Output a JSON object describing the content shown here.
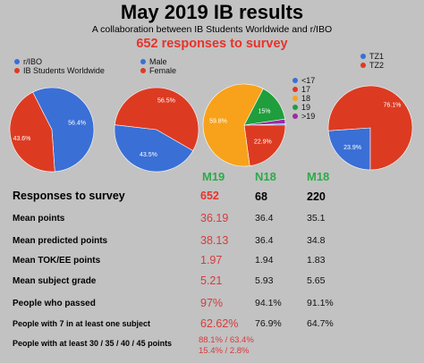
{
  "header": {
    "title": "May 2019 IB results",
    "subtitle": "A collaboration between IB Students Worldwide and r/IBO",
    "responses_banner": "652 responses to survey"
  },
  "chart_data": [
    {
      "type": "pie",
      "labels": [
        "r/IBO",
        "IB Students Worldwide"
      ],
      "values": [
        56.4,
        43.6
      ],
      "value_labels": [
        "56.4%",
        "43.6%"
      ],
      "colors": [
        "#3a6fd6",
        "#dc3b22"
      ],
      "legend": "top-left"
    },
    {
      "type": "pie",
      "labels": [
        "Male",
        "Female"
      ],
      "values": [
        43.5,
        56.5
      ],
      "value_labels": [
        "43.5%",
        "56.5%"
      ],
      "colors": [
        "#3a6fd6",
        "#dc3b22"
      ],
      "legend": "top-left"
    },
    {
      "type": "pie",
      "labels": [
        "<17",
        "17",
        "18",
        "19",
        ">19"
      ],
      "values": [
        0.5,
        22.9,
        59.8,
        15,
        1.8
      ],
      "value_labels": [
        "",
        "22.9%",
        "59.8%",
        "15%",
        ""
      ],
      "colors": [
        "#3a6fd6",
        "#dc3b22",
        "#f7a21a",
        "#1f9e3d",
        "#9b2ca0"
      ],
      "legend": "right"
    },
    {
      "type": "pie",
      "labels": [
        "TZ1",
        "TZ2"
      ],
      "values": [
        23.9,
        76.1
      ],
      "value_labels": [
        "23.9%",
        "76.1%"
      ],
      "colors": [
        "#3a6fd6",
        "#dc3b22"
      ],
      "legend": "top-left"
    },
    {
      "type": "table",
      "columns": [
        "M19",
        "N18",
        "M18"
      ],
      "rows": [
        {
          "label": "Responses to survey",
          "values": [
            "652",
            "68",
            "220"
          ]
        },
        {
          "label": "Mean points",
          "values": [
            "36.19",
            "36.4",
            "35.1"
          ]
        },
        {
          "label": "Mean predicted points",
          "values": [
            "38.13",
            "36.4",
            "34.8"
          ]
        },
        {
          "label": "Mean TOK/EE points",
          "values": [
            "1.97",
            "1.94",
            "1.83"
          ]
        },
        {
          "label": "Mean subject grade",
          "values": [
            "5.21",
            "5.93",
            "5.65"
          ]
        },
        {
          "label": "People who passed",
          "values": [
            "97%",
            "94.1%",
            "91.1%"
          ]
        },
        {
          "label": "People with 7 in at least one subject",
          "values": [
            "62.62%",
            "76.9%",
            "64.7%"
          ]
        },
        {
          "label": "People with at least 30 / 35 / 40 / 45 points",
          "values": [
            "88.1% / 63.4% / 15.4% / 2.8%",
            "",
            ""
          ]
        }
      ]
    }
  ]
}
